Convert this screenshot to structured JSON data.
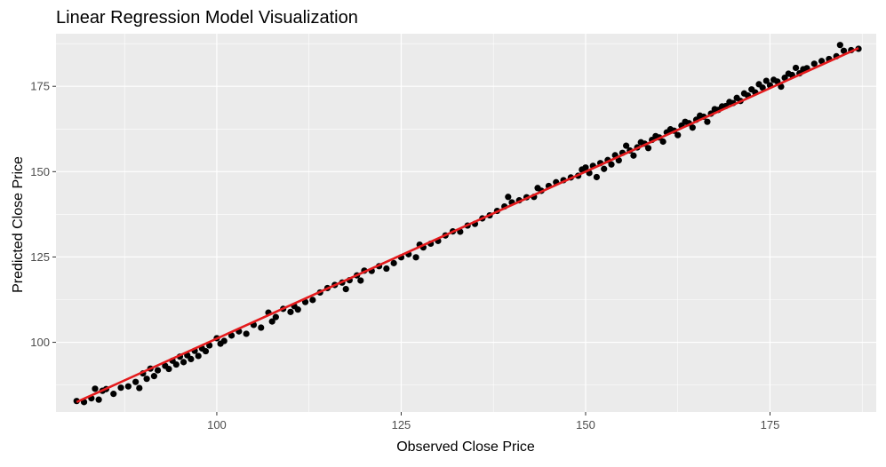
{
  "chart_data": {
    "type": "scatter",
    "title": "Linear Regression Model Visualization",
    "xlabel": "Observed Close Price",
    "ylabel": "Predicted Close Price",
    "xlim": [
      78.2,
      189.4
    ],
    "ylim": [
      79.6,
      190.4
    ],
    "x_ticks": [
      100,
      125,
      150,
      175
    ],
    "y_ticks": [
      100,
      125,
      150,
      175
    ],
    "x_tick_labels": [
      "100",
      "125",
      "150",
      "175"
    ],
    "y_tick_labels": [
      "100",
      "125",
      "150",
      "175"
    ],
    "grid": true,
    "legend": "none",
    "panel_background": "#EBEBEB",
    "grid_color": "#FFFFFF",
    "point_color": "#000000",
    "fit_line_color": "#E41A1C",
    "fit_line": {
      "x": [
        81,
        187
      ],
      "y": [
        82.5,
        186.2
      ]
    },
    "series": [
      {
        "points": [
          [
            81,
            82.8
          ],
          [
            82,
            82.5
          ],
          [
            83,
            83.6
          ],
          [
            83.5,
            86.4
          ],
          [
            84,
            83.2
          ],
          [
            84.5,
            85.8
          ],
          [
            85,
            86.3
          ],
          [
            86,
            84.9
          ],
          [
            87,
            86.7
          ],
          [
            88,
            87.1
          ],
          [
            89,
            88.4
          ],
          [
            89.5,
            86.6
          ],
          [
            90,
            90.9
          ],
          [
            90.5,
            89.3
          ],
          [
            91,
            92.3
          ],
          [
            91.5,
            90.1
          ],
          [
            92,
            91.8
          ],
          [
            93,
            93.1
          ],
          [
            93.5,
            92.2
          ],
          [
            94,
            94.6
          ],
          [
            94.5,
            93.5
          ],
          [
            95,
            95.8
          ],
          [
            95.5,
            94.2
          ],
          [
            96,
            96.2
          ],
          [
            96.5,
            95.1
          ],
          [
            97,
            97.5
          ],
          [
            97.5,
            96.0
          ],
          [
            98,
            98.2
          ],
          [
            98.5,
            97.4
          ],
          [
            99,
            99.1
          ],
          [
            100,
            101.2
          ],
          [
            100.5,
            99.6
          ],
          [
            101,
            100.4
          ],
          [
            102,
            102.0
          ],
          [
            103,
            103.2
          ],
          [
            104,
            102.5
          ],
          [
            105,
            105.1
          ],
          [
            106,
            104.3
          ],
          [
            107,
            108.7
          ],
          [
            107.5,
            106.1
          ],
          [
            108,
            107.4
          ],
          [
            109,
            109.8
          ],
          [
            110,
            108.9
          ],
          [
            110.5,
            110.6
          ],
          [
            111,
            109.6
          ],
          [
            112,
            111.8
          ],
          [
            113,
            112.4
          ],
          [
            114,
            114.6
          ],
          [
            115,
            115.9
          ],
          [
            116,
            116.8
          ],
          [
            117,
            117.5
          ],
          [
            117.5,
            115.6
          ],
          [
            118,
            118.2
          ],
          [
            119,
            119.6
          ],
          [
            119.5,
            118.1
          ],
          [
            120,
            121.0
          ],
          [
            121,
            120.9
          ],
          [
            122,
            122.3
          ],
          [
            123,
            121.6
          ],
          [
            124,
            123.2
          ],
          [
            125,
            124.9
          ],
          [
            126,
            125.8
          ],
          [
            127,
            124.9
          ],
          [
            127.5,
            128.6
          ],
          [
            128,
            127.8
          ],
          [
            129,
            128.9
          ],
          [
            130,
            129.7
          ],
          [
            131,
            131.3
          ],
          [
            132,
            132.5
          ],
          [
            133,
            132.4
          ],
          [
            134,
            134.2
          ],
          [
            135,
            134.7
          ],
          [
            136,
            136.3
          ],
          [
            137,
            137.2
          ],
          [
            138,
            138.5
          ],
          [
            139,
            139.8
          ],
          [
            139.5,
            142.6
          ],
          [
            140,
            141.0
          ],
          [
            141,
            141.6
          ],
          [
            142,
            142.5
          ],
          [
            143,
            142.6
          ],
          [
            143.5,
            145.2
          ],
          [
            144,
            144.4
          ],
          [
            145,
            145.8
          ],
          [
            146,
            146.9
          ],
          [
            147,
            147.5
          ],
          [
            148,
            148.3
          ],
          [
            149,
            148.8
          ],
          [
            149.5,
            150.6
          ],
          [
            150,
            151.2
          ],
          [
            150.5,
            149.6
          ],
          [
            151,
            151.7
          ],
          [
            151.5,
            148.4
          ],
          [
            152,
            152.5
          ],
          [
            152.5,
            150.8
          ],
          [
            153,
            153.4
          ],
          [
            153.5,
            152.1
          ],
          [
            154,
            154.8
          ],
          [
            154.5,
            153.3
          ],
          [
            155,
            155.5
          ],
          [
            155.5,
            157.6
          ],
          [
            156,
            156.2
          ],
          [
            156.5,
            154.7
          ],
          [
            157,
            157.1
          ],
          [
            157.5,
            158.6
          ],
          [
            158,
            158.2
          ],
          [
            158.5,
            156.9
          ],
          [
            159,
            159.3
          ],
          [
            159.5,
            160.4
          ],
          [
            160,
            160.0
          ],
          [
            160.5,
            158.8
          ],
          [
            161,
            161.5
          ],
          [
            161.5,
            162.4
          ],
          [
            162,
            162.0
          ],
          [
            162.5,
            160.7
          ],
          [
            163,
            163.5
          ],
          [
            163.5,
            164.6
          ],
          [
            164,
            164.2
          ],
          [
            164.5,
            162.9
          ],
          [
            165,
            165.2
          ],
          [
            165.5,
            166.4
          ],
          [
            166,
            166.1
          ],
          [
            166.5,
            164.6
          ],
          [
            167,
            167.0
          ],
          [
            167.5,
            168.3
          ],
          [
            168,
            168.1
          ],
          [
            168.5,
            169.1
          ],
          [
            169,
            169.2
          ],
          [
            169.5,
            170.4
          ],
          [
            170,
            170.1
          ],
          [
            170.5,
            171.6
          ],
          [
            171,
            170.7
          ],
          [
            171.5,
            172.9
          ],
          [
            172,
            172.3
          ],
          [
            172.5,
            174.1
          ],
          [
            173,
            173.2
          ],
          [
            173.5,
            175.6
          ],
          [
            174,
            174.6
          ],
          [
            174.5,
            176.6
          ],
          [
            175,
            175.3
          ],
          [
            175.5,
            176.9
          ],
          [
            176,
            176.4
          ],
          [
            176.5,
            174.9
          ],
          [
            177,
            177.5
          ],
          [
            177.5,
            178.7
          ],
          [
            178,
            178.3
          ],
          [
            178.5,
            180.4
          ],
          [
            179,
            178.8
          ],
          [
            179.5,
            180.0
          ],
          [
            180,
            180.3
          ],
          [
            181,
            181.6
          ],
          [
            182,
            182.4
          ],
          [
            183,
            183.0
          ],
          [
            184,
            183.8
          ],
          [
            184.5,
            187.1
          ],
          [
            185,
            185.4
          ],
          [
            186,
            185.6
          ],
          [
            187,
            186.0
          ]
        ]
      }
    ]
  }
}
